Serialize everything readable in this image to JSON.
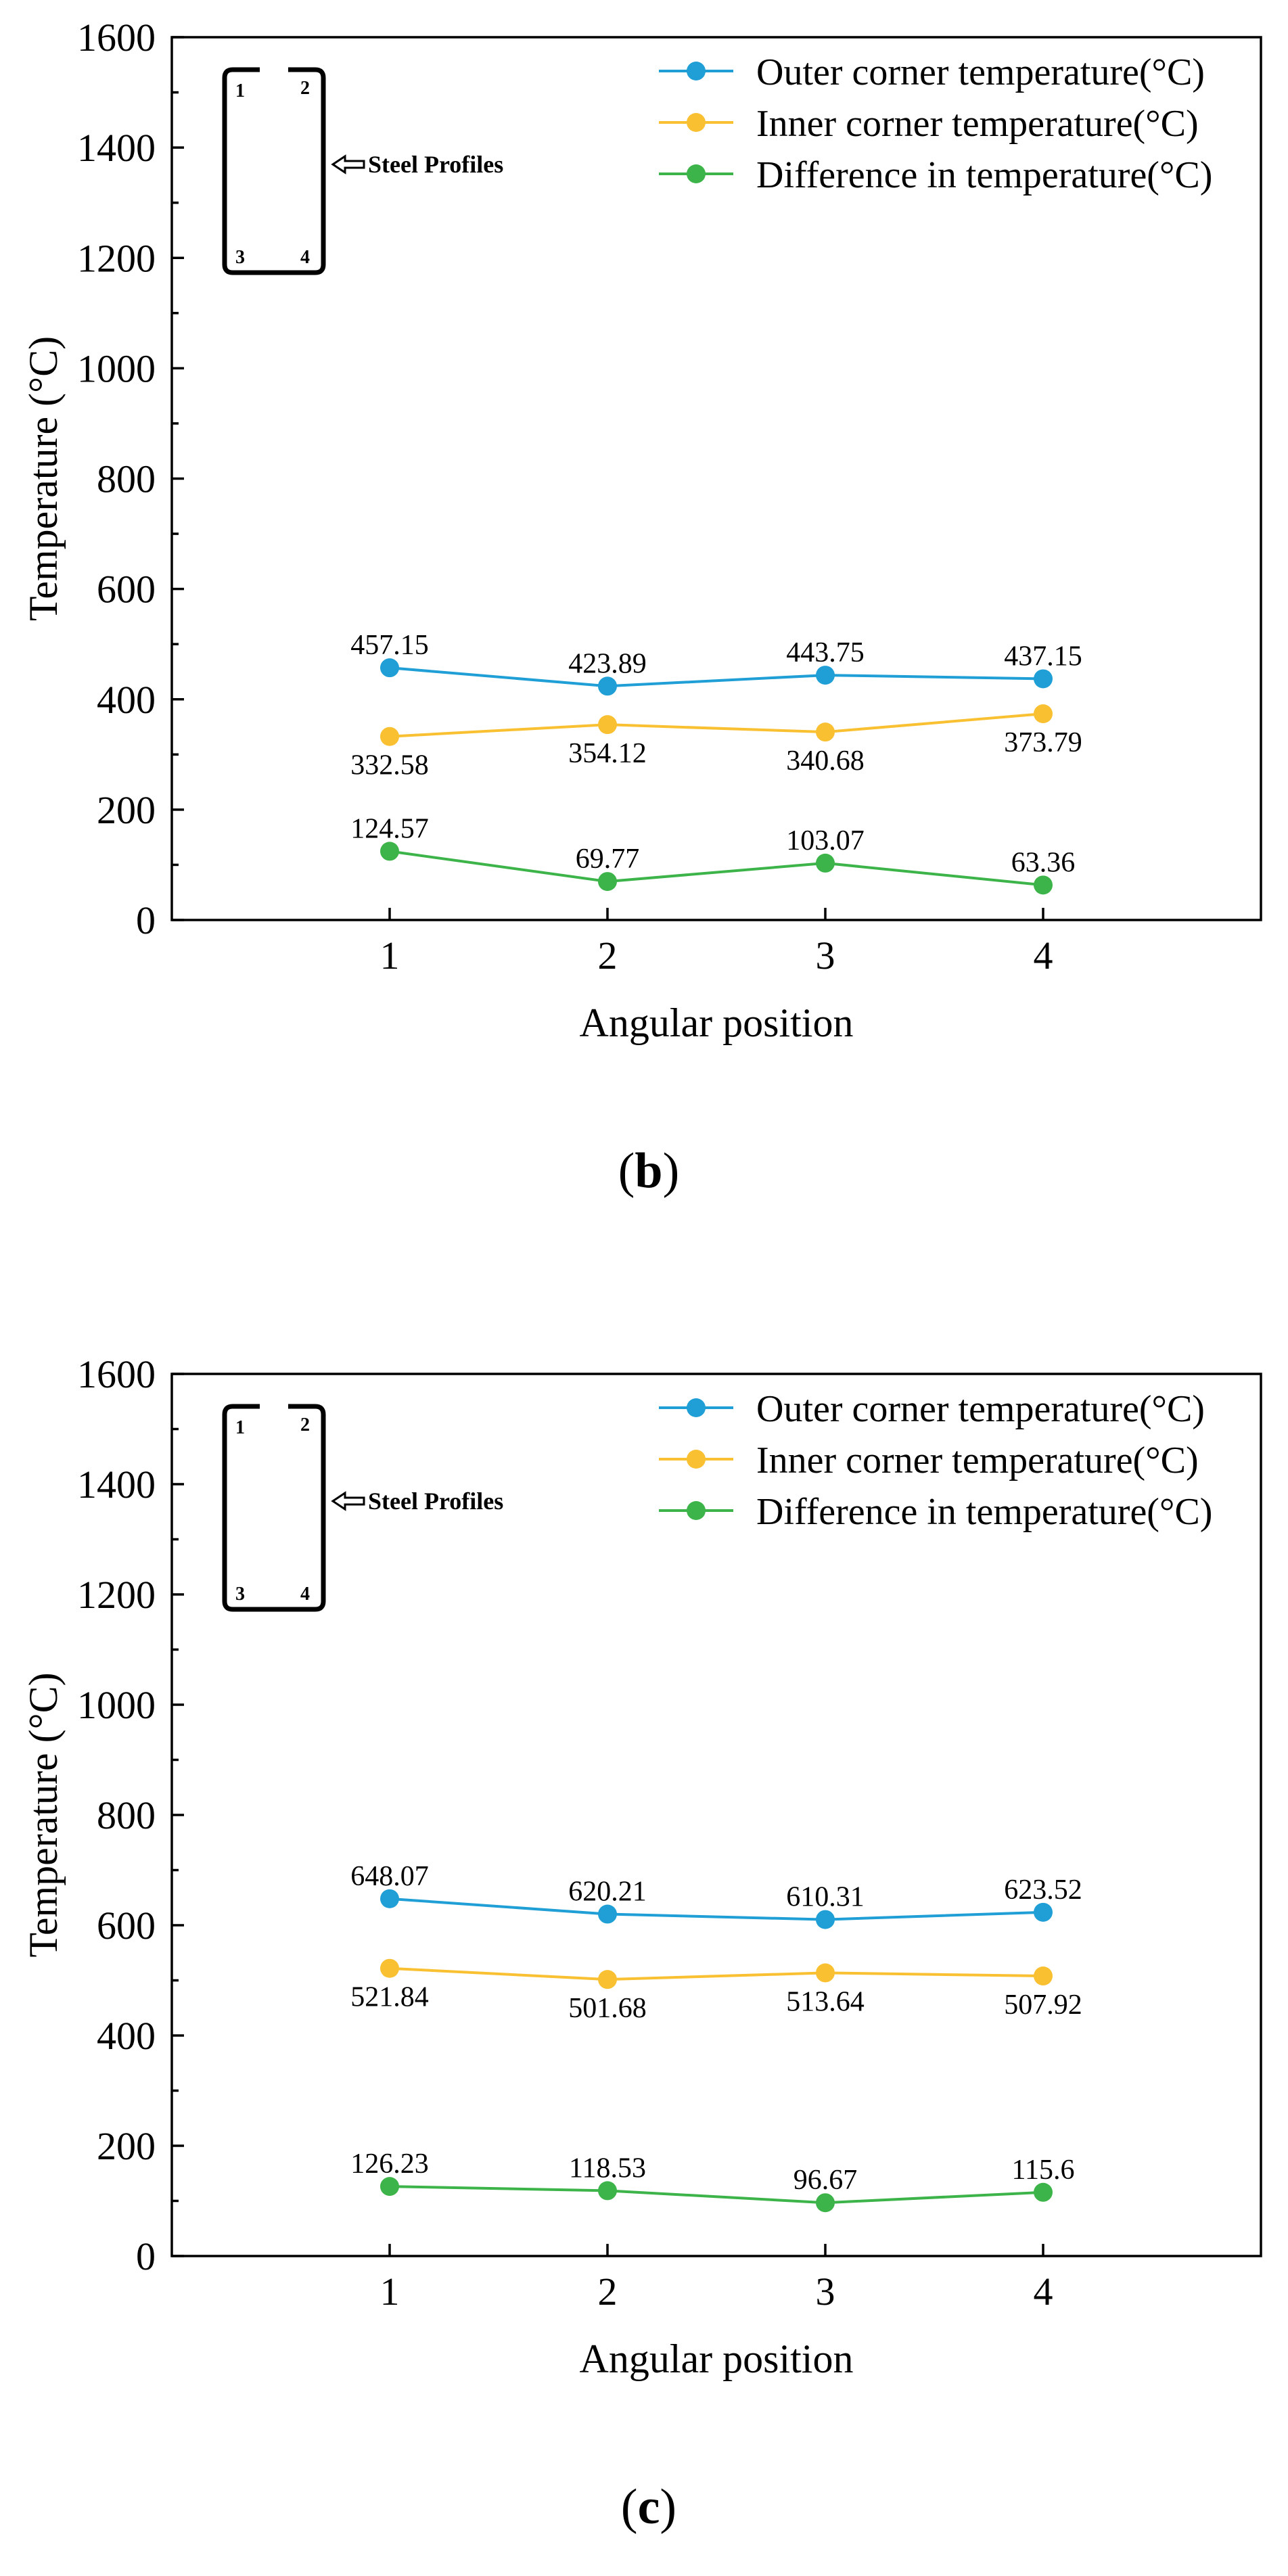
{
  "colors": {
    "outer": "#1f9fd6",
    "inner": "#f9c032",
    "difference": "#3db449"
  },
  "chart_data": [
    {
      "type": "line",
      "panel": "(b)",
      "panel_letter": "b",
      "xlabel": "Angular position",
      "ylabel": "Temperature (°C)",
      "categories": [
        "1",
        "2",
        "3",
        "4"
      ],
      "ylim": [
        0,
        1600
      ],
      "yticks": [
        0,
        200,
        400,
        600,
        800,
        1000,
        1200,
        1400,
        1600
      ],
      "xlim": [
        0,
        5
      ],
      "legend_position": "top-right",
      "series": [
        {
          "name": "Outer corner temperature(°C)",
          "key": "outer",
          "values": [
            457.15,
            423.89,
            443.75,
            437.15
          ],
          "labels": [
            "457.15",
            "423.89",
            "443.75",
            "437.15"
          ],
          "label_side": "above"
        },
        {
          "name": "Inner corner temperature(°C)",
          "key": "inner",
          "values": [
            332.58,
            354.12,
            340.68,
            373.79
          ],
          "labels": [
            "332.58",
            "354.12",
            "340.68",
            "373.79"
          ],
          "label_side": "below"
        },
        {
          "name": "Difference in temperature(°C)",
          "key": "difference",
          "values": [
            124.57,
            69.77,
            103.07,
            63.36
          ],
          "labels": [
            "124.57",
            "69.77",
            "103.07",
            "63.36"
          ],
          "label_side": "above"
        }
      ],
      "inset": {
        "corner_labels": [
          "1",
          "2",
          "3",
          "4"
        ],
        "text": "Steel Profiles"
      }
    },
    {
      "type": "line",
      "panel": "(c)",
      "panel_letter": "c",
      "xlabel": "Angular position",
      "ylabel": "Temperature (°C)",
      "categories": [
        "1",
        "2",
        "3",
        "4"
      ],
      "ylim": [
        0,
        1600
      ],
      "yticks": [
        0,
        200,
        400,
        600,
        800,
        1000,
        1200,
        1400,
        1600
      ],
      "xlim": [
        0,
        5
      ],
      "legend_position": "top-right",
      "series": [
        {
          "name": "Outer corner temperature(°C)",
          "key": "outer",
          "values": [
            648.07,
            620.21,
            610.31,
            623.52
          ],
          "labels": [
            "648.07",
            "620.21",
            "610.31",
            "623.52"
          ],
          "label_side": "above"
        },
        {
          "name": "Inner corner temperature(°C)",
          "key": "inner",
          "values": [
            521.84,
            501.68,
            513.64,
            507.92
          ],
          "labels": [
            "521.84",
            "501.68",
            "513.64",
            "507.92"
          ],
          "label_side": "below"
        },
        {
          "name": "Difference in temperature(°C)",
          "key": "difference",
          "values": [
            126.23,
            118.53,
            96.67,
            115.6
          ],
          "labels": [
            "126.23",
            "118.53",
            "96.67",
            "115.6"
          ],
          "label_side": "above"
        }
      ],
      "inset": {
        "corner_labels": [
          "1",
          "2",
          "3",
          "4"
        ],
        "text": "Steel Profiles"
      }
    }
  ]
}
